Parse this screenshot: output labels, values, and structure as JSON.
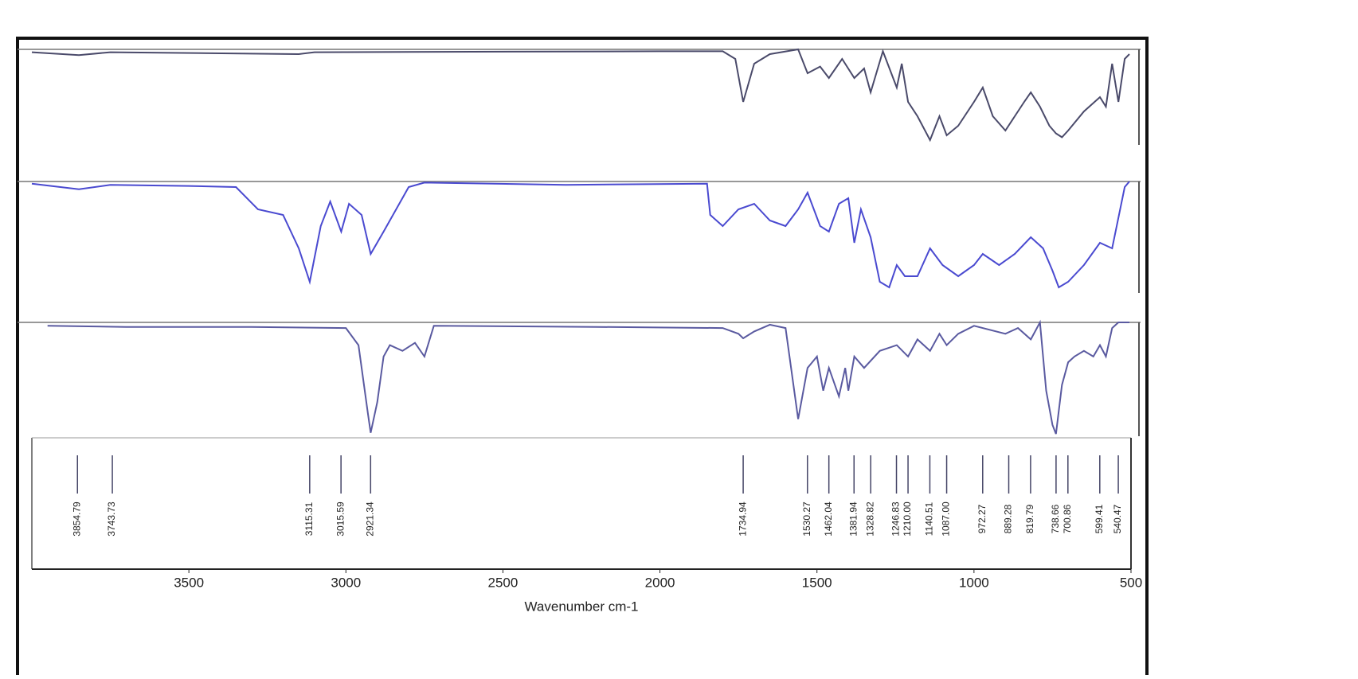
{
  "chart_data": {
    "type": "line",
    "xlabel": "Wavenumber cm-1",
    "xlim": [
      4000,
      500
    ],
    "xticks": [
      3500,
      3000,
      2500,
      2000,
      1500,
      1000,
      500
    ],
    "ylim": [
      0,
      100
    ],
    "series": [
      {
        "color": "#4a4a6a",
        "x": [
          4000,
          3850,
          3750,
          3150,
          3100,
          2000,
          1800,
          1760,
          1735,
          1700,
          1650,
          1560,
          1530,
          1490,
          1462,
          1420,
          1381,
          1350,
          1329,
          1290,
          1246,
          1230,
          1210,
          1180,
          1140,
          1110,
          1087,
          1050,
          1000,
          972,
          940,
          900,
          870,
          840,
          819,
          790,
          760,
          739,
          720,
          700,
          650,
          599,
          580,
          560,
          540,
          520,
          505
        ],
        "values": [
          97,
          94,
          97,
          95,
          97,
          98,
          98,
          90,
          45,
          85,
          95,
          100,
          75,
          82,
          70,
          90,
          70,
          80,
          55,
          98,
          60,
          85,
          45,
          30,
          5,
          30,
          10,
          20,
          45,
          60,
          30,
          15,
          30,
          45,
          55,
          40,
          20,
          12,
          8,
          15,
          35,
          50,
          40,
          85,
          45,
          90,
          95
        ]
      },
      {
        "color": "#4a4ad0",
        "x": [
          4000,
          3850,
          3750,
          3500,
          3350,
          3280,
          3200,
          3150,
          3115,
          3080,
          3050,
          3015,
          2990,
          2950,
          2921,
          2880,
          2800,
          2750,
          2300,
          1850,
          1840,
          1800,
          1750,
          1700,
          1650,
          1600,
          1560,
          1530,
          1490,
          1462,
          1430,
          1400,
          1381,
          1360,
          1329,
          1300,
          1270,
          1246,
          1220,
          1180,
          1140,
          1100,
          1050,
          1000,
          972,
          920,
          870,
          819,
          780,
          750,
          730,
          700,
          650,
          599,
          560,
          520,
          505
        ],
        "values": [
          98,
          93,
          97,
          96,
          95,
          75,
          70,
          40,
          10,
          60,
          82,
          55,
          80,
          70,
          35,
          55,
          95,
          99,
          97,
          98,
          70,
          60,
          75,
          80,
          65,
          60,
          75,
          90,
          60,
          55,
          80,
          85,
          45,
          75,
          50,
          10,
          5,
          25,
          15,
          15,
          40,
          25,
          15,
          25,
          35,
          25,
          35,
          50,
          40,
          20,
          5,
          10,
          25,
          45,
          40,
          95,
          100
        ]
      },
      {
        "color": "#5a5aa0",
        "x": [
          3950,
          3700,
          3300,
          3000,
          2960,
          2930,
          2921,
          2900,
          2880,
          2860,
          2820,
          2780,
          2750,
          2720,
          2200,
          1800,
          1750,
          1735,
          1700,
          1650,
          1600,
          1560,
          1530,
          1500,
          1480,
          1462,
          1430,
          1410,
          1400,
          1381,
          1350,
          1300,
          1246,
          1210,
          1180,
          1140,
          1110,
          1087,
          1050,
          1000,
          900,
          860,
          819,
          790,
          770,
          750,
          739,
          720,
          700,
          680,
          650,
          620,
          599,
          580,
          560,
          540,
          505
        ],
        "values": [
          97,
          96,
          96,
          95,
          80,
          20,
          3,
          30,
          70,
          80,
          75,
          82,
          70,
          97,
          96,
          95,
          90,
          86,
          92,
          98,
          95,
          15,
          60,
          70,
          40,
          60,
          35,
          60,
          40,
          70,
          60,
          75,
          80,
          70,
          85,
          75,
          90,
          80,
          90,
          97,
          90,
          95,
          85,
          100,
          40,
          10,
          2,
          45,
          65,
          70,
          75,
          70,
          80,
          70,
          95,
          100,
          100
        ]
      }
    ],
    "peaks": [
      3854.79,
      3743.73,
      3115.31,
      3015.59,
      2921.34,
      1734.94,
      1530.27,
      1462.04,
      1381.94,
      1328.82,
      1246.83,
      {
        "value": 1210,
        "label": "1210.00"
      },
      1140.51,
      {
        "value": 1087,
        "label": "1087.00"
      },
      972.27,
      889.28,
      819.79,
      738.66,
      700.86,
      599.41,
      540.47
    ]
  }
}
